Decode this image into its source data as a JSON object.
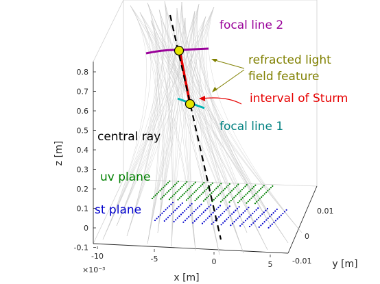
{
  "axes": {
    "x_label": "x [m]",
    "y_label": "y [m]",
    "z_label": "z [m]",
    "x_exponent": "×10⁻³",
    "x_ticks": [
      "-10",
      "-5",
      "0",
      "5"
    ],
    "y_ticks": [
      "0.01",
      "0",
      "-0.01"
    ],
    "z_ticks": [
      "0.8",
      "0.7",
      "0.6",
      "0.5",
      "0.4",
      "0.3",
      "0.2",
      "0.1",
      "0",
      "-0.1"
    ]
  },
  "annotations": {
    "focal_line_2": "focal line 2",
    "focal_line_1": "focal line 1",
    "feature_line1": "refracted light",
    "feature_line2": "field feature",
    "sturm": "interval of Sturm",
    "central_ray": "central ray",
    "uv_plane": "uv plane",
    "st_plane": "st plane"
  },
  "colors": {
    "focal_line_2": "#990099",
    "focal_line_1": "#00b3b3",
    "feature": "#808000",
    "sturm": "#e60000",
    "central_ray": "#000000",
    "uv_plane": "#008000",
    "st_plane": "#0000cc",
    "rays": "#c8c8c8",
    "focal_marker": "#e6e600"
  }
}
